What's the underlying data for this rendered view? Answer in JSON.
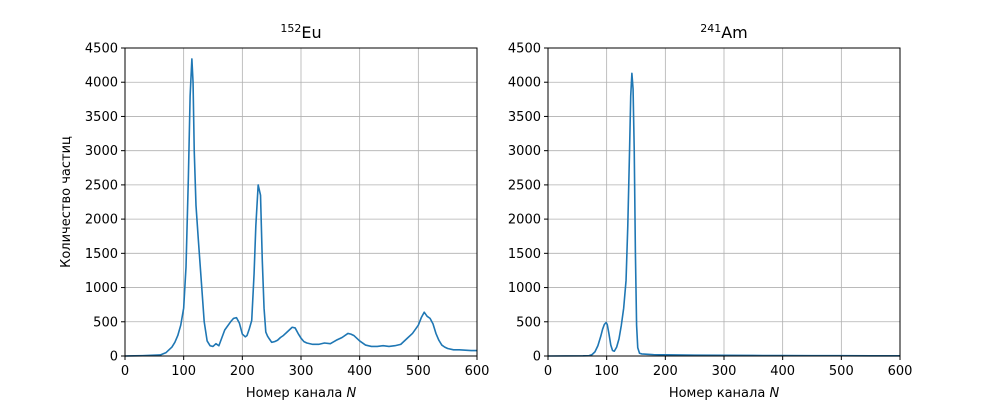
{
  "chart_data": [
    {
      "type": "line",
      "title": {
        "sup": "152",
        "main": "Eu"
      },
      "xlabel": "Номер канала",
      "xlabel_var": "N",
      "ylabel": "Количество частиц",
      "xlim": [
        0,
        600
      ],
      "ylim": [
        0,
        4500
      ],
      "xticks": [
        "0",
        "100",
        "200",
        "300",
        "400",
        "500",
        "600"
      ],
      "yticks": [
        "0",
        "500",
        "1000",
        "1500",
        "2000",
        "2500",
        "3000",
        "3500",
        "4000",
        "4500"
      ],
      "grid": true,
      "color": "#1f77b4",
      "series": [
        {
          "x": [
            0,
            30,
            60,
            70,
            80,
            85,
            90,
            95,
            100,
            104,
            108,
            111,
            114,
            116,
            118,
            121,
            125,
            130,
            135,
            140,
            145,
            150,
            155,
            160,
            170,
            180,
            185,
            190,
            195,
            200,
            205,
            208,
            212,
            216,
            220,
            223,
            227,
            231,
            234,
            237,
            240,
            243,
            246,
            250,
            255,
            260,
            265,
            270,
            275,
            280,
            285,
            290,
            295,
            300,
            305,
            310,
            320,
            330,
            340,
            350,
            360,
            370,
            380,
            385,
            390,
            395,
            400,
            410,
            420,
            430,
            440,
            450,
            460,
            470,
            480,
            490,
            500,
            505,
            510,
            515,
            520,
            525,
            530,
            535,
            540,
            545,
            550,
            560,
            570,
            580,
            590,
            600
          ],
          "y": [
            0,
            5,
            15,
            50,
            130,
            200,
            300,
            450,
            700,
            1300,
            2600,
            3800,
            4340,
            4000,
            3000,
            2200,
            1700,
            1100,
            500,
            220,
            150,
            140,
            180,
            150,
            380,
            500,
            550,
            560,
            480,
            320,
            280,
            300,
            400,
            520,
            1200,
            1900,
            2500,
            2350,
            1400,
            700,
            350,
            290,
            250,
            200,
            210,
            230,
            270,
            300,
            340,
            380,
            420,
            410,
            330,
            260,
            210,
            190,
            170,
            170,
            190,
            180,
            230,
            270,
            330,
            320,
            300,
            260,
            220,
            160,
            140,
            140,
            150,
            140,
            150,
            170,
            250,
            330,
            450,
            560,
            640,
            580,
            550,
            470,
            330,
            230,
            160,
            130,
            110,
            90,
            90,
            85,
            80,
            80
          ]
        }
      ]
    },
    {
      "type": "line",
      "title": {
        "sup": "241",
        "main": "Am"
      },
      "xlabel": "Номер канала",
      "xlabel_var": "N",
      "xlim": [
        0,
        600
      ],
      "ylim": [
        0,
        4500
      ],
      "xticks": [
        "0",
        "100",
        "200",
        "300",
        "400",
        "500",
        "600"
      ],
      "yticks": [
        "0",
        "500",
        "1000",
        "1500",
        "2000",
        "2500",
        "3000",
        "3500",
        "4000",
        "4500"
      ],
      "grid": true,
      "color": "#1f77b4",
      "series": [
        {
          "x": [
            0,
            60,
            70,
            75,
            80,
            85,
            90,
            93,
            96,
            99,
            101,
            104,
            107,
            110,
            113,
            117,
            121,
            125,
            129,
            133,
            136,
            139,
            141,
            143,
            145,
            147,
            149,
            151,
            153,
            156,
            160,
            170,
            180,
            200,
            250,
            300,
            350,
            400,
            450,
            500,
            550,
            600
          ],
          "y": [
            0,
            2,
            5,
            20,
            60,
            150,
            290,
            390,
            460,
            490,
            460,
            320,
            160,
            80,
            70,
            130,
            250,
            450,
            700,
            1100,
            1900,
            3000,
            3800,
            4130,
            3900,
            3000,
            1500,
            450,
            120,
            40,
            30,
            25,
            20,
            18,
            12,
            10,
            8,
            6,
            5,
            4,
            3,
            2
          ]
        }
      ]
    }
  ]
}
